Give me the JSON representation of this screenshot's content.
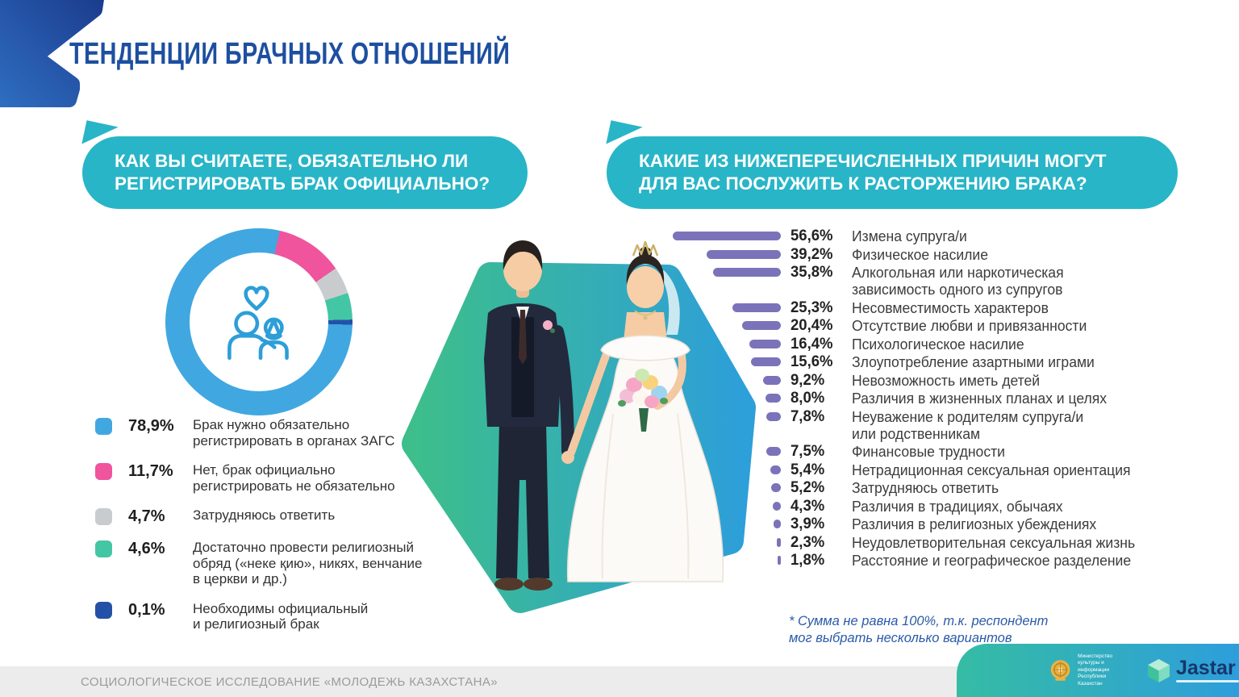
{
  "title": "ТЕНДЕНЦИИ БРАЧНЫХ ОТНОШЕНИЙ",
  "left_panel": {
    "question": "КАК ВЫ СЧИТАЕТЕ, ОБЯЗАТЕЛЬНО ЛИ РЕГИСТРИРОВАТЬ БРАК ОФИЦИАЛЬНО?",
    "legend": [
      {
        "value": "78,9%",
        "pct": 78.9,
        "color": "#41A7E1",
        "label": "Брак нужно обязательно\nрегистрировать в органах ЗАГС"
      },
      {
        "value": "11,7%",
        "pct": 11.7,
        "color": "#EF549D",
        "label": "Нет, брак официально\nрегистрировать не обязательно"
      },
      {
        "value": "4,7%",
        "pct": 4.7,
        "color": "#C9CCCE",
        "label": "Затрудняюсь ответить"
      },
      {
        "value": "4,6%",
        "pct": 4.6,
        "color": "#43C6A4",
        "label": "Достаточно провести религиозный\nобряд («неке қию», никях, венчание\nв церкви и др.)"
      },
      {
        "value": "0,1%",
        "pct": 0.1,
        "color": "#2451A8",
        "label": "Необходимы официальный\nи религиозный брак"
      }
    ]
  },
  "right_panel": {
    "question": "КАКИЕ ИЗ НИЖЕПЕРЕЧИСЛЕННЫХ ПРИЧИН МОГУТ ДЛЯ ВАС ПОСЛУЖИТЬ К РАСТОРЖЕНИЮ БРАКА?",
    "bars": [
      {
        "value": "56,6%",
        "pct": 56.6,
        "label": "Измена супруга/и"
      },
      {
        "value": "39,2%",
        "pct": 39.2,
        "label": "Физическое насилие"
      },
      {
        "value": "35,8%",
        "pct": 35.8,
        "label": "Алкогольная или наркотическая\nзависимость одного из супругов"
      },
      {
        "value": "25,3%",
        "pct": 25.3,
        "label": "Несовместимость характеров"
      },
      {
        "value": "20,4%",
        "pct": 20.4,
        "label": "Отсутствие любви и привязанности"
      },
      {
        "value": "16,4%",
        "pct": 16.4,
        "label": "Психологическое насилие"
      },
      {
        "value": "15,6%",
        "pct": 15.6,
        "label": "Злоупотребление азартными играми"
      },
      {
        "value": "9,2%",
        "pct": 9.2,
        "label": "Невозможность иметь детей"
      },
      {
        "value": "8,0%",
        "pct": 8.0,
        "label": "Различия в жизненных планах и целях"
      },
      {
        "value": "7,8%",
        "pct": 7.8,
        "label": "Неуважение к родителям супруга/и\nили родственникам"
      },
      {
        "value": "7,5%",
        "pct": 7.5,
        "label": "Финансовые трудности"
      },
      {
        "value": "5,4%",
        "pct": 5.4,
        "label": "Нетрадиционная сексуальная ориентация"
      },
      {
        "value": "5,2%",
        "pct": 5.2,
        "label": "Затрудняюсь ответить"
      },
      {
        "value": "4,3%",
        "pct": 4.3,
        "label": "Различия в традициях, обычаях"
      },
      {
        "value": "3,9%",
        "pct": 3.9,
        "label": "Различия в религиозных убеждениях"
      },
      {
        "value": "2,3%",
        "pct": 2.3,
        "label": "Неудовлетворительная сексуальная жизнь"
      },
      {
        "value": "1,8%",
        "pct": 1.8,
        "label": "Расстояние и географическое разделение"
      }
    ],
    "footnote": "* Сумма не равна 100%, т.к. респондент\n мог выбрать несколько вариантов"
  },
  "footer": {
    "study": "СОЦИОЛОГИЧЕСКОЕ ИССЛЕДОВАНИЕ «МОЛОДЕЖЬ КАЗАХСТАНА»",
    "ministry": "Министерство\nкультуры и информации\nРеспублики Казахстан",
    "brand": "Jastar"
  },
  "colors": {
    "bubble": "#28B5C7",
    "bar": "#7B73B9",
    "title": "#1D4FA0",
    "hex_green": "#3DBE8B",
    "hex_blue": "#2D9FD9",
    "footnote": "#2A5AA8"
  },
  "chart_data": [
    {
      "type": "pie",
      "style": "donut",
      "title": "КАК ВЫ СЧИТАЕТЕ, ОБЯЗАТЕЛЬНО ЛИ РЕГИСТРИРОВАТЬ БРАК ОФИЦИАЛЬНО?",
      "labels": [
        "Брак нужно обязательно регистрировать в органах ЗАГС",
        "Нет, брак официально регистрировать не обязательно",
        "Затрудняюсь ответить",
        "Достаточно провести религиозный обряд («неке қию», никях, венчание в церкви и др.)",
        "Необходимы официальный и религиозный брак"
      ],
      "values": [
        78.9,
        11.7,
        4.7,
        4.6,
        0.1
      ],
      "unit": "%",
      "colors": [
        "#41A7E1",
        "#EF549D",
        "#C9CCCE",
        "#43C6A4",
        "#2451A8"
      ],
      "legend_position": "below"
    },
    {
      "type": "bar",
      "orientation": "horizontal",
      "title": "КАКИЕ ИЗ НИЖЕПЕРЕЧИСЛЕННЫХ ПРИЧИН МОГУТ ДЛЯ ВАС ПОСЛУЖИТЬ К РАСТОРЖЕНИЮ БРАКА?",
      "categories": [
        "Измена супруга/и",
        "Физическое насилие",
        "Алкогольная или наркотическая зависимость одного из супругов",
        "Несовместимость характеров",
        "Отсутствие любви и привязанности",
        "Психологическое насилие",
        "Злоупотребление азартными играми",
        "Невозможность иметь детей",
        "Различия в жизненных планах и целях",
        "Неуважение к родителям супруга/и или родственникам",
        "Финансовые трудности",
        "Нетрадиционная сексуальная ориентация",
        "Затрудняюсь ответить",
        "Различия в традициях, обычаях",
        "Различия в религиозных убеждениях",
        "Неудовлетворительная сексуальная жизнь",
        "Расстояние и географическое разделение"
      ],
      "values": [
        56.6,
        39.2,
        35.8,
        25.3,
        20.4,
        16.4,
        15.6,
        9.2,
        8.0,
        7.8,
        7.5,
        5.4,
        5.2,
        4.3,
        3.9,
        2.3,
        1.8
      ],
      "unit": "%",
      "bar_color": "#7B73B9",
      "note": "* Сумма не равна 100%, т.к. респондент мог выбрать несколько вариантов"
    }
  ]
}
